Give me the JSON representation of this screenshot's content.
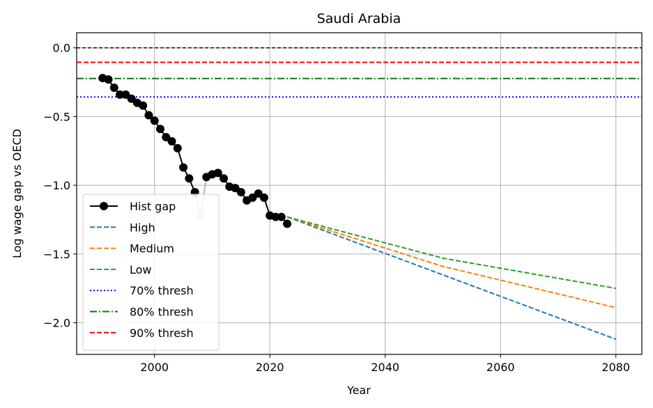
{
  "chart_data": {
    "type": "line",
    "title": "Saudi Arabia",
    "xlabel": "Year",
    "ylabel": "Log wage gap vs OECD",
    "xlim": [
      1986.5,
      2084.5
    ],
    "ylim": [
      -2.23,
      0.11
    ],
    "xticks": [
      2000,
      2020,
      2040,
      2060,
      2080
    ],
    "yticks": [
      0.0,
      -0.5,
      -1.0,
      -1.5,
      -2.0
    ],
    "xtick_labels": [
      "2000",
      "2020",
      "2040",
      "2060",
      "2080"
    ],
    "ytick_labels": [
      "0.0",
      "−0.5",
      "−1.0",
      "−1.5",
      "−2.0"
    ],
    "grid": true,
    "legend_position": "lower-left",
    "reference_line": {
      "y": 0.0,
      "color": "#000000",
      "style": "dashed"
    },
    "series": [
      {
        "name": "Hist gap",
        "color": "#000000",
        "style": "solid",
        "marker": "circle",
        "x": [
          1991,
          1992,
          1993,
          1994,
          1995,
          1996,
          1997,
          1998,
          1999,
          2000,
          2001,
          2002,
          2003,
          2004,
          2005,
          2006,
          2007,
          2008,
          2009,
          2010,
          2011,
          2012,
          2013,
          2014,
          2015,
          2016,
          2017,
          2018,
          2019,
          2020,
          2021,
          2022,
          2023
        ],
        "y": [
          -0.22,
          -0.23,
          -0.29,
          -0.34,
          -0.34,
          -0.37,
          -0.4,
          -0.42,
          -0.49,
          -0.53,
          -0.59,
          -0.65,
          -0.68,
          -0.73,
          -0.87,
          -0.95,
          -1.05,
          -1.22,
          -0.94,
          -0.92,
          -0.91,
          -0.95,
          -1.01,
          -1.02,
          -1.05,
          -1.11,
          -1.09,
          -1.06,
          -1.09,
          -1.22,
          -1.23,
          -1.23,
          -1.28
        ],
        "highlight": {
          "x": 2008,
          "y": -1.22,
          "color": "#c8c8c8"
        }
      },
      {
        "name": "High",
        "color": "#1f77b4",
        "style": "dashed",
        "x": [
          2023,
          2080
        ],
        "y": [
          -1.23,
          -2.12
        ]
      },
      {
        "name": "Medium",
        "color": "#ff7f0e",
        "style": "dashed",
        "x": [
          2023,
          2050,
          2080
        ],
        "y": [
          -1.23,
          -1.59,
          -1.89
        ]
      },
      {
        "name": "Low",
        "color": "#2ca02c",
        "style": "dashed",
        "x": [
          2023,
          2050,
          2080
        ],
        "y": [
          -1.23,
          -1.53,
          -1.75
        ]
      },
      {
        "name": "70% thresh",
        "color": "#0000ff",
        "style": "dotted",
        "x": [
          1986.5,
          2084.5
        ],
        "y": [
          -0.357,
          -0.357
        ]
      },
      {
        "name": "80% thresh",
        "color": "#008000",
        "style": "dashdot",
        "x": [
          1986.5,
          2084.5
        ],
        "y": [
          -0.223,
          -0.223
        ]
      },
      {
        "name": "90% thresh",
        "color": "#ff0000",
        "style": "dashed",
        "x": [
          1986.5,
          2084.5
        ],
        "y": [
          -0.105,
          -0.105
        ]
      }
    ]
  }
}
